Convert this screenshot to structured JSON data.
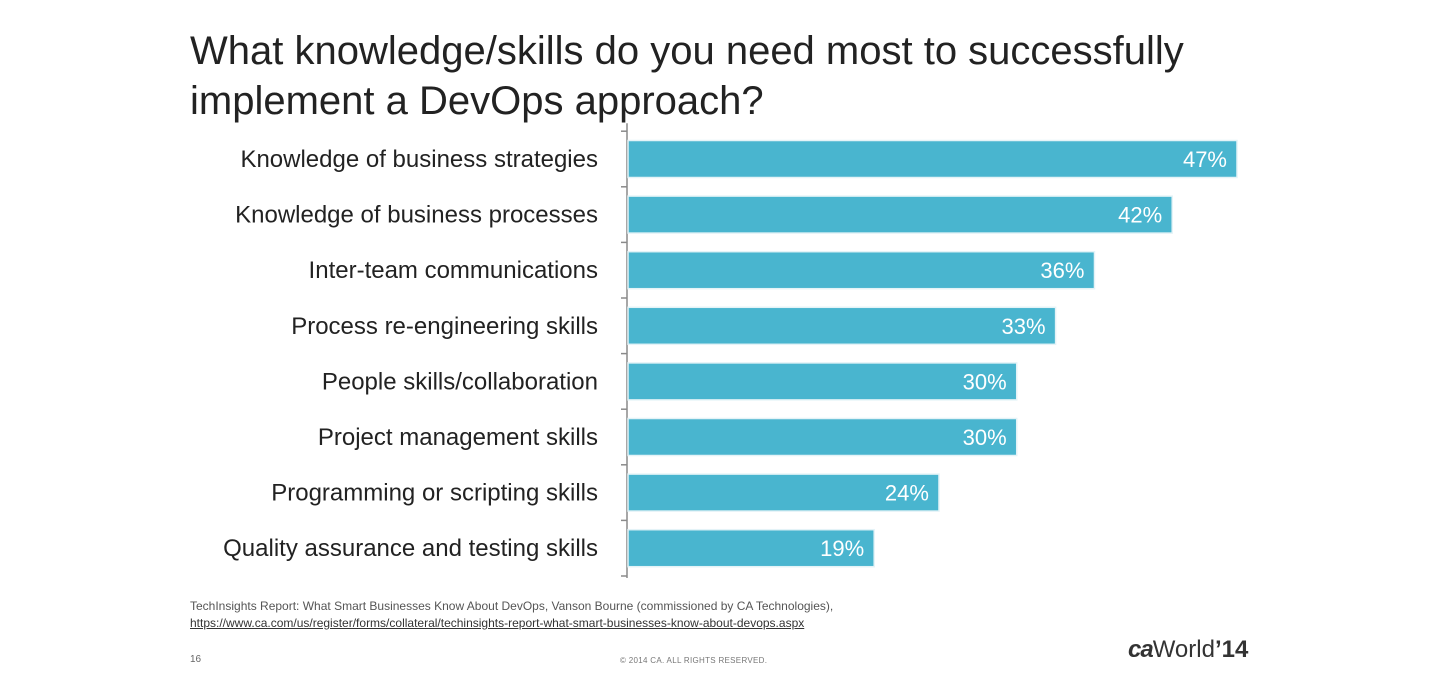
{
  "title": "What knowledge/skills do you need most to successfully implement a DevOps approach?",
  "chart_data": {
    "type": "bar",
    "orientation": "horizontal",
    "categories": [
      "Knowledge of business strategies",
      "Knowledge of business processes",
      "Inter-team communications",
      "Process re-engineering skills",
      "People skills/collaboration",
      "Project management skills",
      "Programming or scripting skills",
      "Quality assurance and testing skills"
    ],
    "values": [
      47,
      42,
      36,
      33,
      30,
      30,
      24,
      19
    ],
    "value_labels": [
      "47%",
      "42%",
      "36%",
      "33%",
      "30%",
      "30%",
      "24%",
      "19%"
    ],
    "xlim": [
      0,
      47
    ],
    "grid": false,
    "bar_color": "#49b5cf"
  },
  "footer": {
    "source_text": "TechInsights Report: What Smart Businesses Know About DevOps, Vanson Bourne (commissioned by CA Technologies),",
    "source_url": "https://www.ca.com/us/register/forms/collateral/techinsights-report-what-smart-businesses-know-about-devops.aspx",
    "page_number": "16",
    "copyright": "© 2014 CA. ALL RIGHTS RESERVED.",
    "logo_ca": "ca",
    "logo_world": "World",
    "logo_year": "’14"
  }
}
